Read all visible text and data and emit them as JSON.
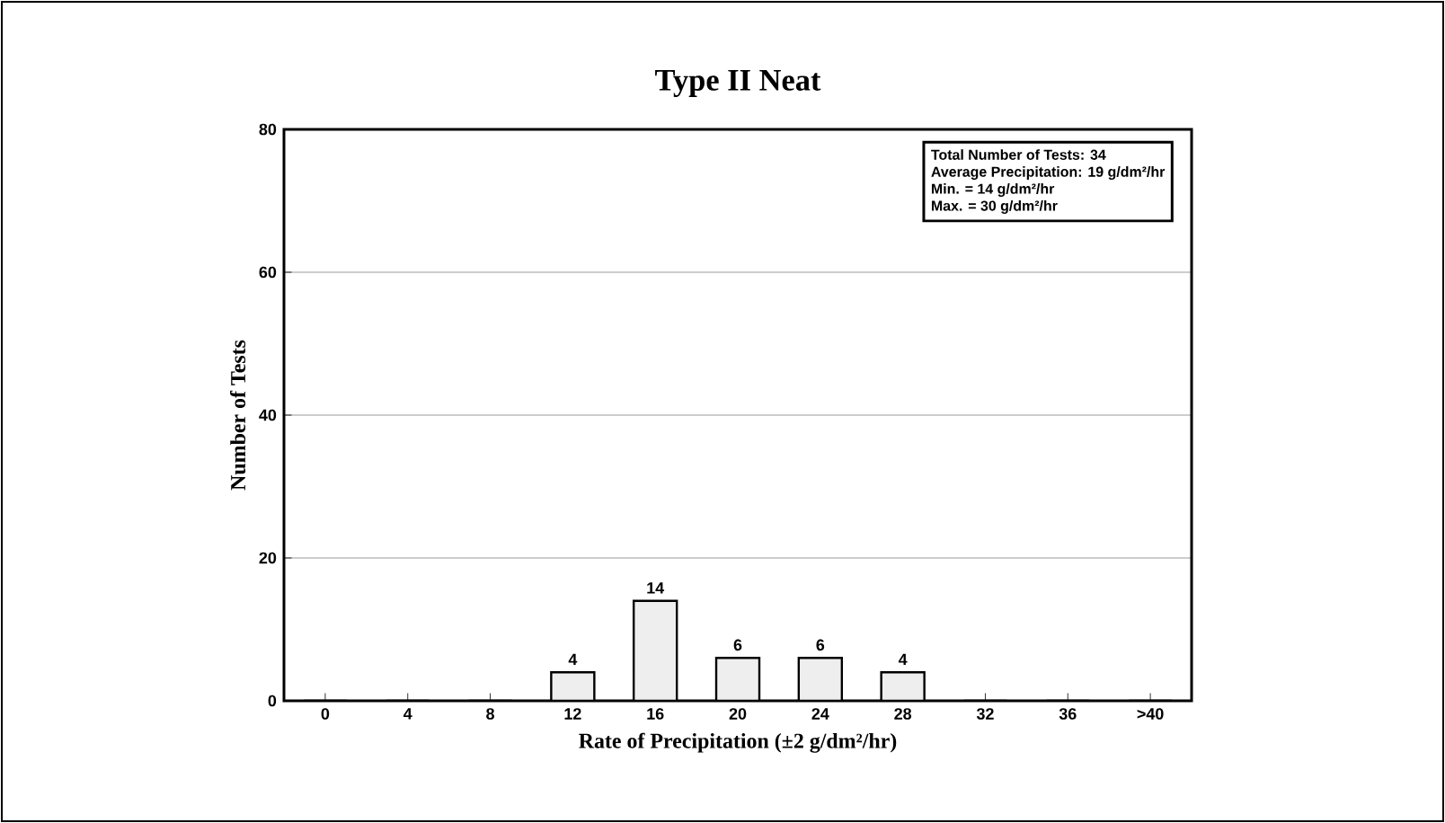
{
  "chart_data": {
    "type": "bar",
    "title": "Type II Neat",
    "xlabel": "Rate of Precipitation (±2 g/dm²/hr)",
    "ylabel": "Number of Tests",
    "categories": [
      "0",
      "4",
      "8",
      "12",
      "16",
      "20",
      "24",
      "28",
      "32",
      "36",
      ">40"
    ],
    "values": [
      0,
      0,
      0,
      4,
      14,
      6,
      6,
      4,
      0,
      0,
      0
    ],
    "value_labels": [
      null,
      null,
      null,
      "4",
      "14",
      "6",
      "6",
      "4",
      null,
      null,
      null
    ],
    "color": "#eeeeee",
    "ylim": [
      0,
      80
    ],
    "yticks": [
      0,
      20,
      40,
      60,
      80
    ],
    "grid": "y",
    "annotations": [
      "Total Number of Tests: 34",
      "Average Precipitation: 19 g/dm²/hr",
      "Min. = 14 g/dm²/hr",
      "Max. = 30 g/dm²/hr"
    ]
  }
}
